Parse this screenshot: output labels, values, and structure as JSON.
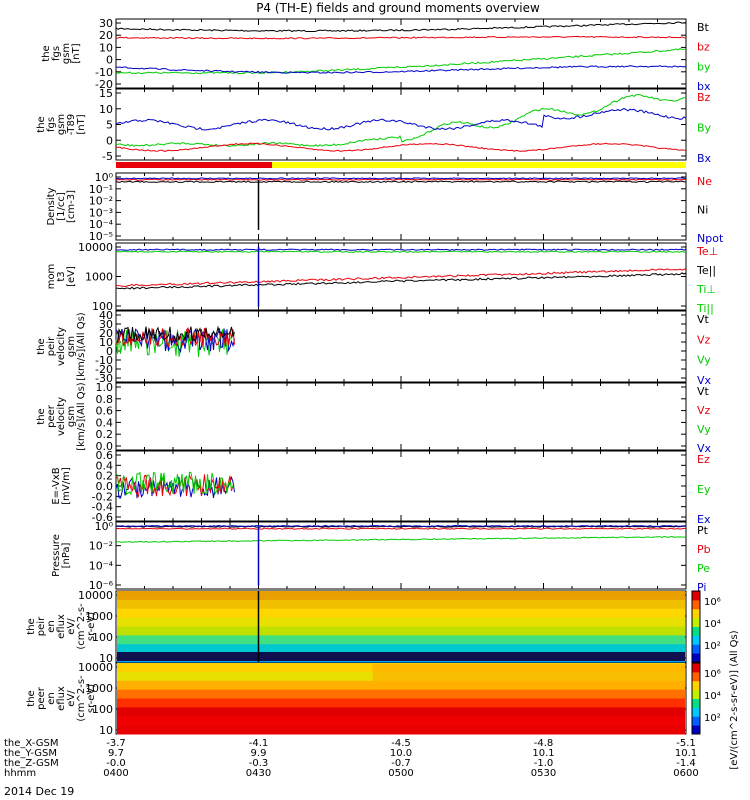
{
  "title": "P4 (TH-E) fields and ground moments overview",
  "date": "2014 Dec 19",
  "colors": {
    "black": "#000000",
    "red": "#e8000b",
    "green": "#00cc00",
    "blue": "#0000c8",
    "yellow": "#ffff00"
  },
  "chart_data": {
    "type": "line",
    "x_ticks": [
      "0400",
      "0430",
      "0500",
      "0530",
      "0600"
    ],
    "orbit_rows": [
      {
        "label": "the_X-GSM",
        "values": [
          "-3.7",
          "-4.1",
          "-4.5",
          "-4.8",
          "-5.1"
        ]
      },
      {
        "label": "the_Y-GSM",
        "values": [
          "9.7",
          "9.9",
          "10.0",
          "10.1",
          "10.1"
        ]
      },
      {
        "label": "the_Z-GSM",
        "values": [
          "-0.0",
          "-0.3",
          "-0.7",
          "-1.0",
          "-1.4"
        ]
      },
      {
        "label": "hhmm",
        "values": [
          "0400",
          "0430",
          "0500",
          "0530",
          "0600"
        ]
      }
    ],
    "panels": [
      {
        "ylabel": [
          "the",
          "fgs",
          "gsm",
          "[nT]"
        ],
        "ticks": [
          "30",
          "20",
          "10",
          "0",
          "-10",
          "-20"
        ],
        "legend": [
          {
            "text": "Bt",
            "color": "black"
          },
          {
            "text": "bz",
            "color": "red"
          },
          {
            "text": "by",
            "color": "green"
          },
          {
            "text": "bx",
            "color": "blue"
          }
        ]
      },
      {
        "ylabel": [
          "the",
          "fgs",
          "gsm",
          "-T89",
          "[nT]"
        ],
        "ticks": [
          "15",
          "10",
          "5",
          "0",
          "-5"
        ],
        "legend": [
          {
            "text": "Bz",
            "color": "red"
          },
          {
            "text": "By",
            "color": "green"
          },
          {
            "text": "Bx",
            "color": "blue"
          }
        ]
      },
      {
        "ylabel": [
          "Density",
          "[1/cc]",
          "[cm-3]"
        ],
        "ticks": [
          "10⁰",
          "10⁻¹",
          "10⁻²",
          "10⁻³",
          "10⁻⁴",
          "10⁻⁵"
        ],
        "legend": [
          {
            "text": "Ne",
            "color": "red"
          },
          {
            "text": "Ni",
            "color": "black"
          },
          {
            "text": "Npot",
            "color": "blue"
          }
        ]
      },
      {
        "ylabel": [
          "mom",
          "t3",
          "[eV]"
        ],
        "ticks": [
          "10000",
          "1000",
          "100"
        ],
        "legend": [
          {
            "text": "Te⊥",
            "color": "red"
          },
          {
            "text": "Te||",
            "color": "black"
          },
          {
            "text": "Ti⊥",
            "color": "green"
          },
          {
            "text": "Ti||",
            "color": "green"
          }
        ]
      },
      {
        "ylabel": [
          "the",
          "peir",
          "velocity",
          "gsm",
          "[km/s](All Qs)"
        ],
        "ticks": [
          "40",
          "30",
          "20",
          "10",
          "0",
          "-10",
          "-20",
          "-30"
        ],
        "legend": [
          {
            "text": "Vt",
            "color": "black"
          },
          {
            "text": "Vz",
            "color": "red"
          },
          {
            "text": "Vy",
            "color": "green"
          },
          {
            "text": "Vx",
            "color": "blue"
          }
        ]
      },
      {
        "ylabel": [
          "the",
          "peer",
          "velocity",
          "gsm",
          "[km/s](All Qs)"
        ],
        "ticks": [
          "1.0",
          "0.8",
          "0.6",
          "0.4",
          "0.2",
          "0.0"
        ],
        "legend": [
          {
            "text": "Vt",
            "color": "black"
          },
          {
            "text": "Vz",
            "color": "red"
          },
          {
            "text": "Vy",
            "color": "green"
          },
          {
            "text": "Vx",
            "color": "blue"
          }
        ]
      },
      {
        "ylabel": [
          "E=-VxB",
          "[mV/m]"
        ],
        "ticks": [
          "0.6",
          "0.4",
          "0.2",
          "0.0",
          "-0.2",
          "-0.4",
          "-0.6"
        ],
        "legend": [
          {
            "text": "Ez",
            "color": "red"
          },
          {
            "text": "Ey",
            "color": "green"
          },
          {
            "text": "Ex",
            "color": "blue"
          }
        ]
      },
      {
        "ylabel": [
          "Pressure",
          "[nPa]"
        ],
        "ticks": [
          "10⁰",
          "10⁻²",
          "10⁻⁴",
          "10⁻⁶"
        ],
        "legend": [
          {
            "text": "Pt",
            "color": "black"
          },
          {
            "text": "Pb",
            "color": "red"
          },
          {
            "text": "Pe",
            "color": "green"
          },
          {
            "text": "Pi",
            "color": "blue"
          }
        ]
      },
      {
        "ylabel": [
          "the",
          "peir",
          "en",
          "eflux",
          "eV/",
          "(cm^2-s-",
          "sr-eV)"
        ],
        "ticks": [
          "10000",
          "1000",
          "100",
          "10"
        ]
      },
      {
        "ylabel": [
          "the",
          "peer",
          "en",
          "eflux",
          "eV/",
          "(cm^2-s-",
          "sr-eV)"
        ],
        "ticks": [
          "10000",
          "1000",
          "100",
          "10"
        ]
      }
    ],
    "colorbar_label": "[eV/(cm^2-s-sr-eV)] (All Qs)",
    "colorbar_ticks": [
      "10⁶",
      "10⁴",
      "10²"
    ]
  }
}
